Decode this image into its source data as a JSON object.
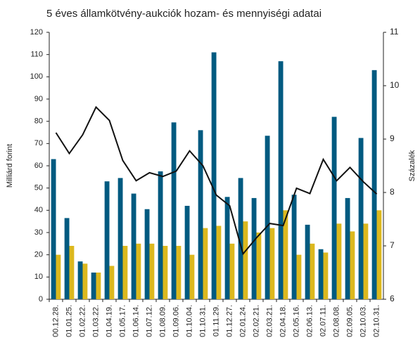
{
  "chart_data": {
    "type": "bar-line",
    "title": "5 éves államkötvény-aukciók hozam- és mennyiségi adatai",
    "ylabel": "Milliárd forint",
    "y2label": "Százalék",
    "categories": [
      "00.12.28.",
      "01.01.25.",
      "01.02.22.",
      "01.03.22.",
      "01.04.19.",
      "01.05.17.",
      "01.06.14.",
      "01.07.12.",
      "01.08.09.",
      "01.09.06.",
      "01.10.04.",
      "01.10.31.",
      "01.11.29.",
      "01.12.27.",
      "02.01.24.",
      "02.02.21.",
      "02.03.21.",
      "02.04.18.",
      "02.05.16.",
      "02.06.13.",
      "02.07.11.",
      "02.08.08.",
      "02.09.05.",
      "02.10.03.",
      "02.10.31."
    ],
    "series": [
      {
        "type": "bar",
        "color": "#005a80",
        "values": [
          63,
          36.5,
          17,
          12,
          53,
          54.5,
          47.5,
          40.5,
          57.5,
          79.5,
          42,
          76,
          111,
          46,
          54.5,
          45.5,
          73.5,
          107,
          47,
          33.5,
          22.5,
          82,
          45.5,
          72.5,
          103
        ]
      },
      {
        "type": "bar",
        "color": "#dcb81e",
        "values": [
          20,
          24,
          16,
          12,
          15,
          24,
          25,
          25,
          24,
          24,
          20,
          32,
          33,
          25,
          35,
          30,
          32,
          40,
          20,
          25,
          21,
          34,
          30.5,
          34,
          40
        ]
      },
      {
        "type": "line",
        "axis": "y2",
        "color": "#111111",
        "values": [
          9.12,
          8.73,
          9.08,
          9.6,
          9.35,
          8.6,
          8.22,
          8.37,
          8.3,
          8.4,
          8.78,
          8.5,
          7.95,
          7.75,
          6.85,
          7.15,
          7.42,
          7.38,
          8.08,
          7.98,
          8.62,
          8.22,
          8.47,
          8.2,
          7.97
        ]
      }
    ],
    "ylim": [
      0,
      120
    ],
    "yticks": [
      0,
      10,
      20,
      30,
      40,
      50,
      60,
      70,
      80,
      90,
      100,
      110,
      120
    ],
    "y2lim": [
      6,
      11
    ],
    "y2ticks": [
      6,
      7,
      8,
      9,
      10,
      11
    ]
  }
}
